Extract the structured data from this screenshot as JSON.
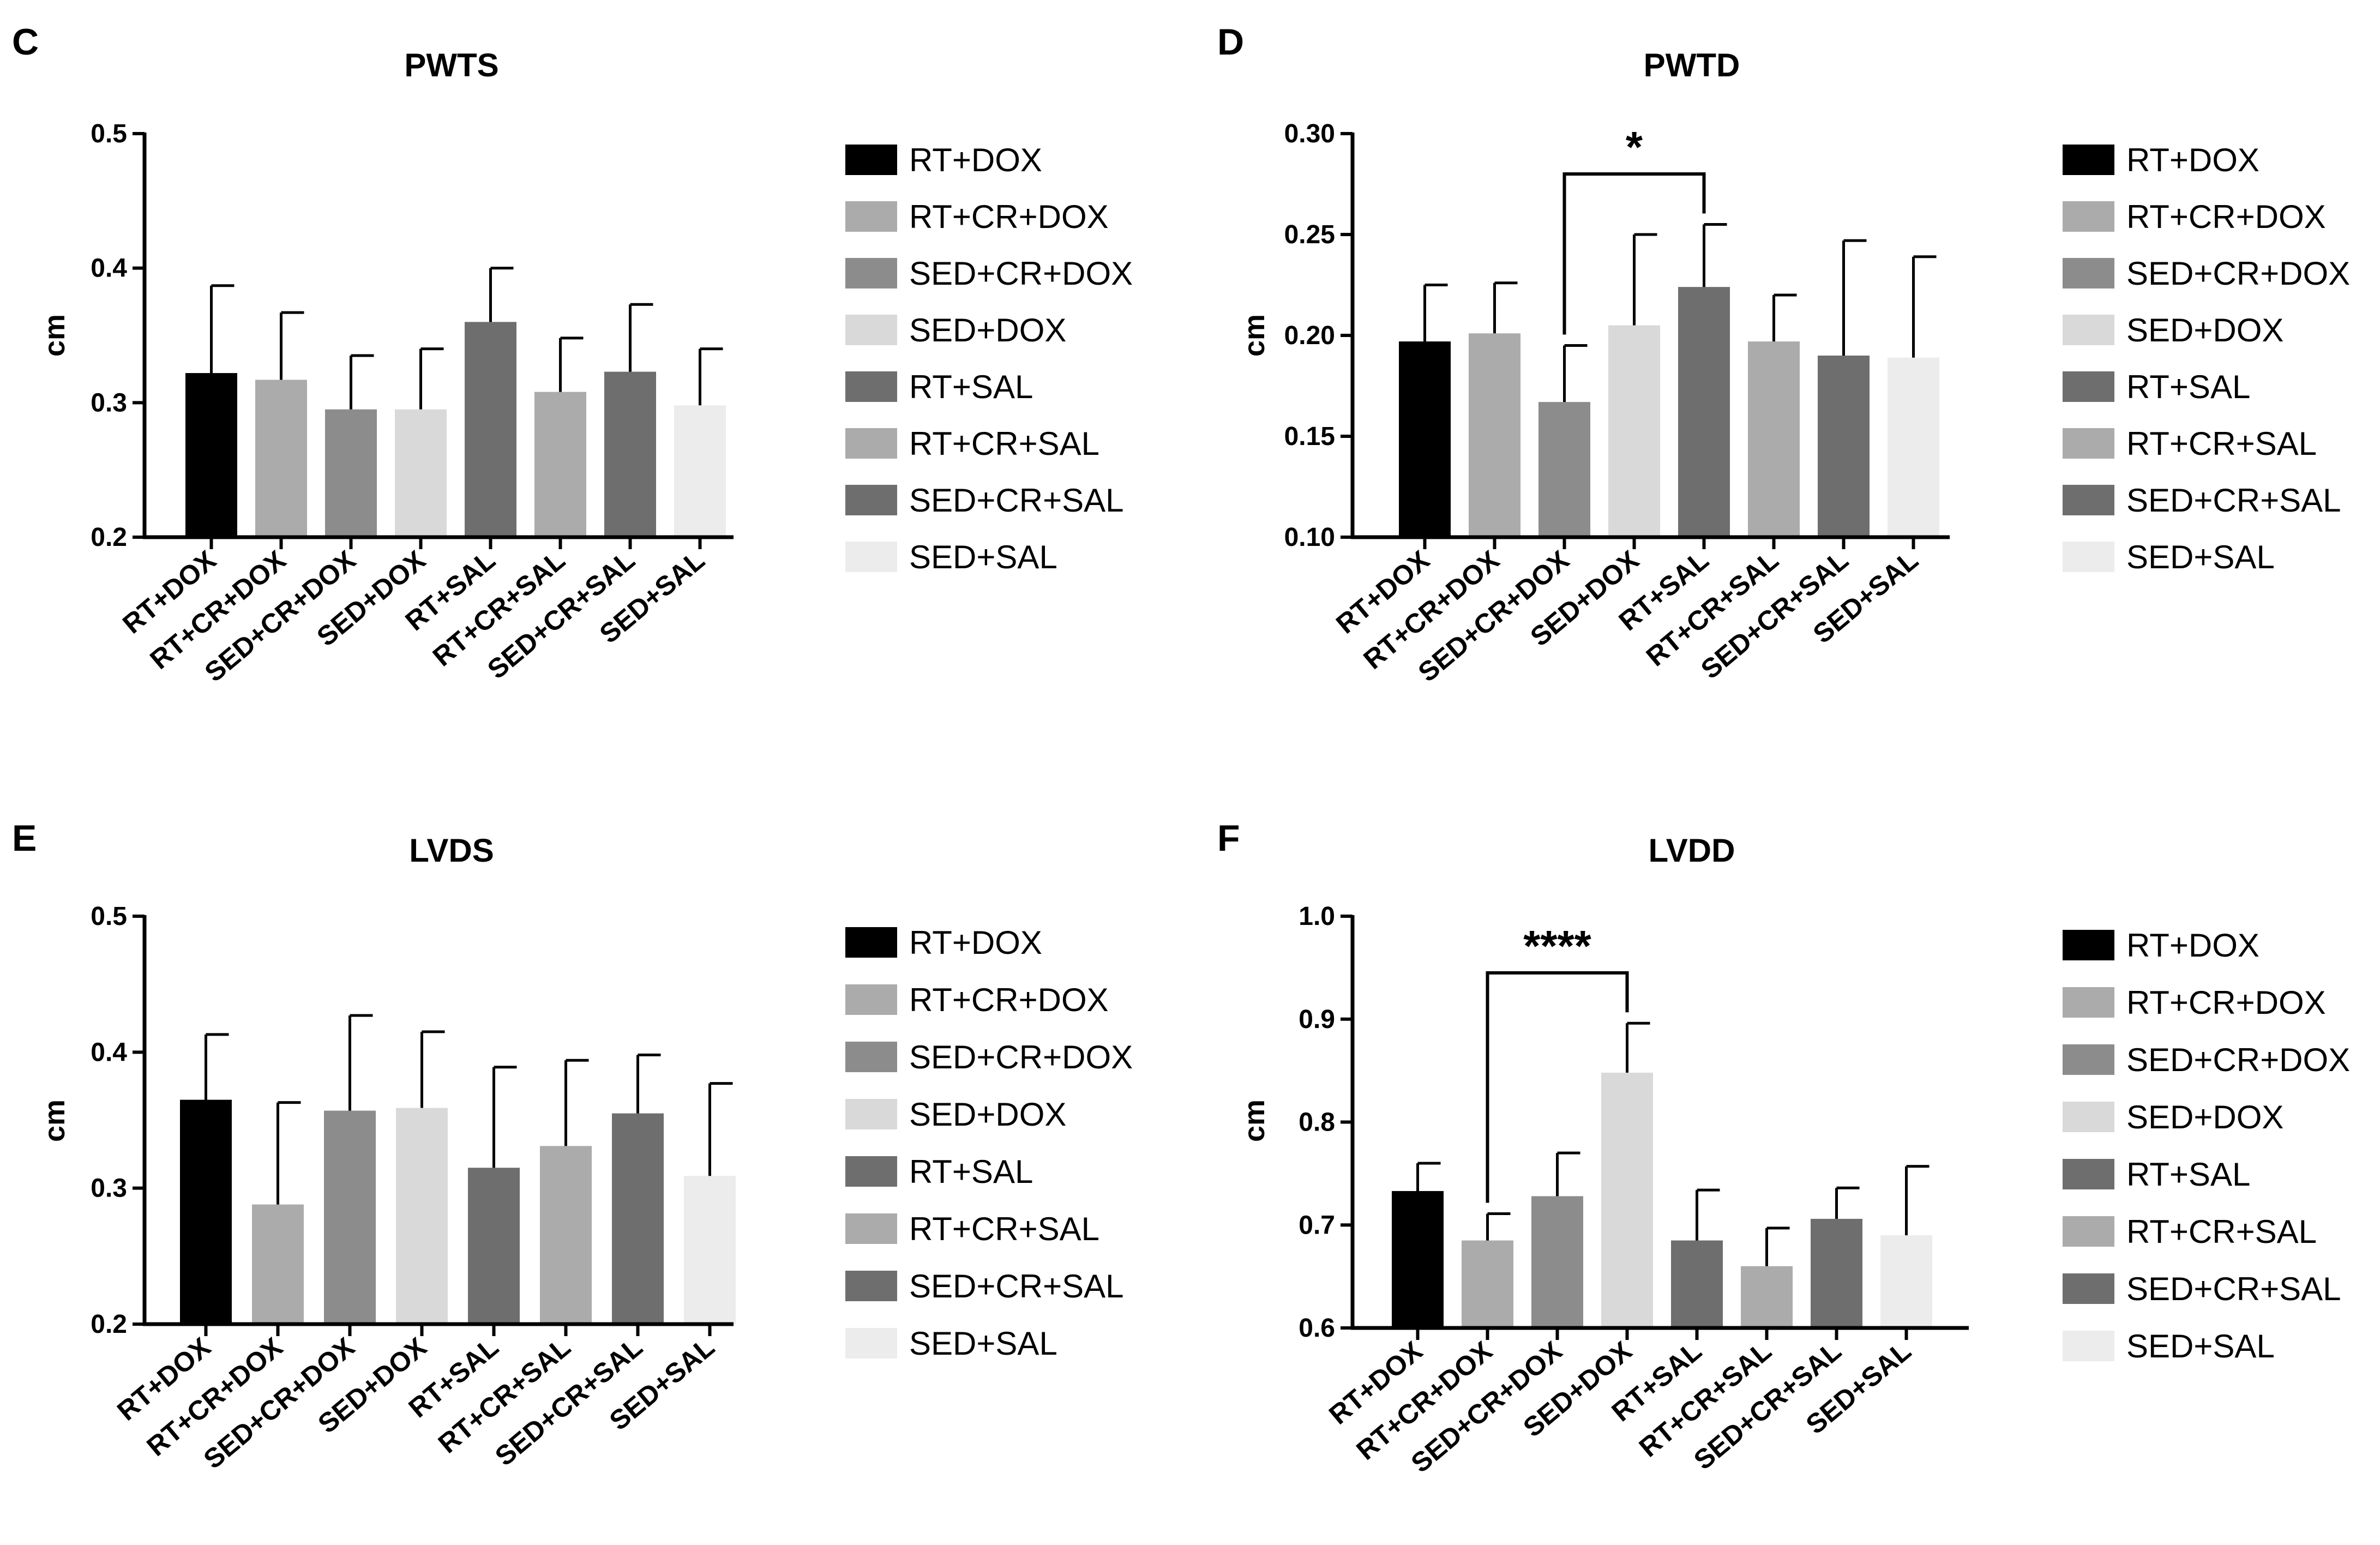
{
  "figure": {
    "background": "#ffffff"
  },
  "chart_data": [
    {
      "panel": "C",
      "type": "bar",
      "title": "PWTS",
      "ylabel": "cm",
      "xlabel": "",
      "ylim": [
        0.2,
        0.5
      ],
      "yticks": [
        "0.2",
        "0.3",
        "0.4",
        "0.5"
      ],
      "categories": [
        "RT+DOX",
        "RT+CR+DOX",
        "SED+CR+DOX",
        "SED+DOX",
        "RT+SAL",
        "RT+CR+SAL",
        "SED+CR+SAL",
        "SED+SAL"
      ],
      "values": [
        0.322,
        0.317,
        0.295,
        0.295,
        0.36,
        0.308,
        0.323,
        0.298
      ],
      "errors": [
        0.065,
        0.05,
        0.04,
        0.045,
        0.04,
        0.04,
        0.05,
        0.042
      ],
      "colors": [
        "#000000",
        "#ababab",
        "#8c8c8c",
        "#d9d9d9",
        "#6e6e6e",
        "#ababab",
        "#6e6e6e",
        "#ececec"
      ],
      "legend": [
        "RT+DOX",
        "RT+CR+DOX",
        "SED+CR+DOX",
        "SED+DOX",
        "RT+SAL",
        "RT+CR+SAL",
        "SED+CR+SAL",
        "SED+SAL"
      ],
      "legend_position": "right",
      "grid": false,
      "annotations": []
    },
    {
      "panel": "D",
      "type": "bar",
      "title": "PWTD",
      "ylabel": "cm",
      "xlabel": "",
      "ylim": [
        0.1,
        0.3
      ],
      "yticks": [
        "0.10",
        "0.15",
        "0.20",
        "0.25",
        "0.30"
      ],
      "categories": [
        "RT+DOX",
        "RT+CR+DOX",
        "SED+CR+DOX",
        "SED+DOX",
        "RT+SAL",
        "RT+CR+SAL",
        "SED+CR+SAL",
        "SED+SAL"
      ],
      "values": [
        0.197,
        0.201,
        0.167,
        0.205,
        0.224,
        0.197,
        0.19,
        0.189
      ],
      "errors": [
        0.028,
        0.025,
        0.028,
        0.045,
        0.031,
        0.023,
        0.057,
        0.05
      ],
      "colors": [
        "#000000",
        "#ababab",
        "#8c8c8c",
        "#d9d9d9",
        "#6e6e6e",
        "#ababab",
        "#6e6e6e",
        "#ececec"
      ],
      "legend": [
        "RT+DOX",
        "RT+CR+DOX",
        "SED+CR+DOX",
        "SED+DOX",
        "RT+SAL",
        "RT+CR+SAL",
        "SED+CR+SAL",
        "SED+SAL"
      ],
      "legend_position": "right",
      "grid": false,
      "annotations": [
        {
          "from": "SED+CR+DOX",
          "to": "RT+SAL",
          "label": "*",
          "y": 0.28
        }
      ]
    },
    {
      "panel": "E",
      "type": "bar",
      "title": "LVDS",
      "ylabel": "cm",
      "xlabel": "",
      "ylim": [
        0.2,
        0.5
      ],
      "yticks": [
        "0.2",
        "0.3",
        "0.4",
        "0.5"
      ],
      "categories": [
        "RT+DOX",
        "RT+CR+DOX",
        "SED+CR+DOX",
        "SED+DOX",
        "RT+SAL",
        "RT+CR+SAL",
        "SED+CR+SAL",
        "SED+SAL"
      ],
      "values": [
        0.365,
        0.288,
        0.357,
        0.359,
        0.315,
        0.331,
        0.355,
        0.309
      ],
      "errors": [
        0.048,
        0.075,
        0.07,
        0.056,
        0.074,
        0.063,
        0.043,
        0.068
      ],
      "colors": [
        "#000000",
        "#ababab",
        "#8c8c8c",
        "#d9d9d9",
        "#6e6e6e",
        "#ababab",
        "#6e6e6e",
        "#ececec"
      ],
      "legend": [
        "RT+DOX",
        "RT+CR+DOX",
        "SED+CR+DOX",
        "SED+DOX",
        "RT+SAL",
        "RT+CR+SAL",
        "SED+CR+SAL",
        "SED+SAL"
      ],
      "legend_position": "right",
      "grid": false,
      "annotations": []
    },
    {
      "panel": "F",
      "type": "bar",
      "title": "LVDD",
      "ylabel": "cm",
      "xlabel": "",
      "ylim": [
        0.6,
        1.0
      ],
      "yticks": [
        "0.6",
        "0.7",
        "0.8",
        "0.9",
        "1.0"
      ],
      "categories": [
        "RT+DOX",
        "RT+CR+DOX",
        "SED+CR+DOX",
        "SED+DOX",
        "RT+SAL",
        "RT+CR+SAL",
        "SED+CR+SAL",
        "SED+SAL"
      ],
      "values": [
        0.733,
        0.685,
        0.728,
        0.848,
        0.685,
        0.66,
        0.706,
        0.69
      ],
      "errors": [
        0.027,
        0.026,
        0.042,
        0.048,
        0.049,
        0.037,
        0.03,
        0.067
      ],
      "colors": [
        "#000000",
        "#ababab",
        "#8c8c8c",
        "#d9d9d9",
        "#6e6e6e",
        "#ababab",
        "#6e6e6e",
        "#ececec"
      ],
      "legend": [
        "RT+DOX",
        "RT+CR+DOX",
        "SED+CR+DOX",
        "SED+DOX",
        "RT+SAL",
        "RT+CR+SAL",
        "SED+CR+SAL",
        "SED+SAL"
      ],
      "legend_position": "right",
      "grid": false,
      "annotations": [
        {
          "from": "RT+CR+DOX",
          "to": "SED+DOX",
          "label": "****",
          "y": 0.945
        }
      ]
    }
  ]
}
